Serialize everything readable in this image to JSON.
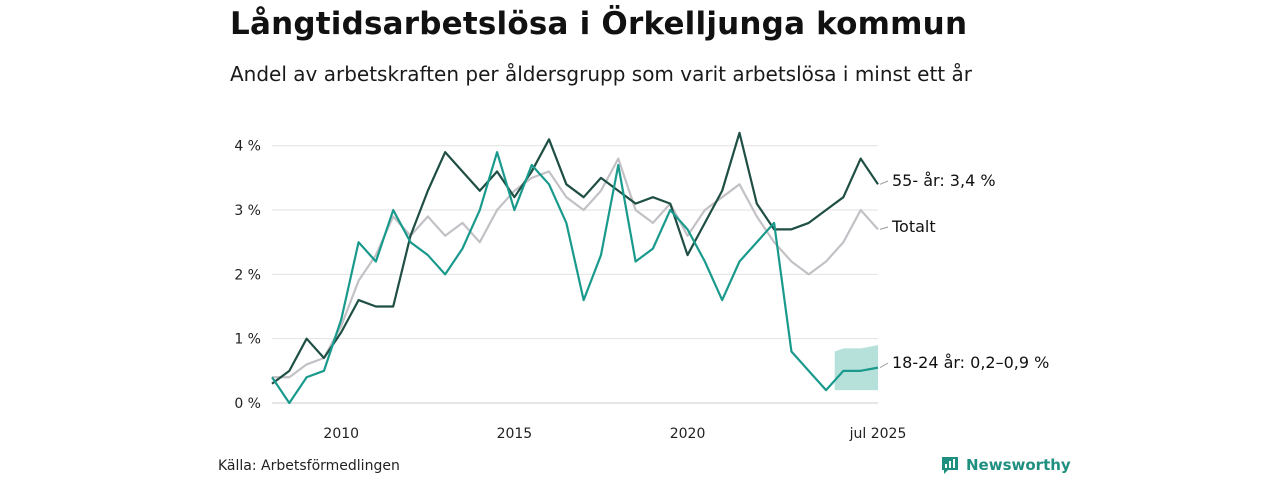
{
  "header": {
    "title": "Långtidsarbetslösa i Örkelljunga kommun",
    "subtitle": "Andel av arbetskraften per åldersgrupp som varit arbetslösa i minst ett år"
  },
  "footer": {
    "source": "Källa: Arbetsförmedlingen",
    "brand": "Newsworthy",
    "brand_color": "#1f8f80"
  },
  "chart_data": {
    "type": "line",
    "x_range": [
      "2008-01",
      "2025-07"
    ],
    "ylim": [
      0,
      4.4
    ],
    "y_ticks": [
      {
        "value": 0,
        "label": "0 %"
      },
      {
        "value": 1,
        "label": "1 %"
      },
      {
        "value": 2,
        "label": "2 %"
      },
      {
        "value": 3,
        "label": "3 %"
      },
      {
        "value": 4,
        "label": "4 %"
      }
    ],
    "x_ticks": [
      {
        "value": "2010-01",
        "label": "2010"
      },
      {
        "value": "2015-01",
        "label": "2015"
      },
      {
        "value": "2020-01",
        "label": "2020"
      },
      {
        "value": "2025-07",
        "label": "jul 2025"
      }
    ],
    "grid": true,
    "series": [
      {
        "id": "totalt",
        "end_label": "Totalt",
        "color": "#c3c1c6",
        "points": [
          [
            "2008-01",
            0.4
          ],
          [
            "2008-07",
            0.4
          ],
          [
            "2009-01",
            0.6
          ],
          [
            "2009-07",
            0.7
          ],
          [
            "2010-01",
            1.2
          ],
          [
            "2010-07",
            1.9
          ],
          [
            "2011-01",
            2.3
          ],
          [
            "2011-07",
            2.9
          ],
          [
            "2012-01",
            2.6
          ],
          [
            "2012-07",
            2.9
          ],
          [
            "2013-01",
            2.6
          ],
          [
            "2013-07",
            2.8
          ],
          [
            "2014-01",
            2.5
          ],
          [
            "2014-07",
            3.0
          ],
          [
            "2015-01",
            3.3
          ],
          [
            "2015-07",
            3.5
          ],
          [
            "2016-01",
            3.6
          ],
          [
            "2016-07",
            3.2
          ],
          [
            "2017-01",
            3.0
          ],
          [
            "2017-07",
            3.3
          ],
          [
            "2018-01",
            3.8
          ],
          [
            "2018-07",
            3.0
          ],
          [
            "2019-01",
            2.8
          ],
          [
            "2019-07",
            3.1
          ],
          [
            "2020-01",
            2.6
          ],
          [
            "2020-07",
            3.0
          ],
          [
            "2021-01",
            3.2
          ],
          [
            "2021-07",
            3.4
          ],
          [
            "2022-01",
            2.9
          ],
          [
            "2022-07",
            2.5
          ],
          [
            "2023-01",
            2.2
          ],
          [
            "2023-07",
            2.0
          ],
          [
            "2024-01",
            2.2
          ],
          [
            "2024-07",
            2.5
          ],
          [
            "2025-01",
            3.0
          ],
          [
            "2025-07",
            2.7
          ]
        ]
      },
      {
        "id": "55plus",
        "end_label": "55- år: 3,4 %",
        "color": "#1f4f44",
        "points": [
          [
            "2008-01",
            0.3
          ],
          [
            "2008-07",
            0.5
          ],
          [
            "2009-01",
            1.0
          ],
          [
            "2009-07",
            0.7
          ],
          [
            "2010-01",
            1.1
          ],
          [
            "2010-07",
            1.6
          ],
          [
            "2011-01",
            1.5
          ],
          [
            "2011-07",
            1.5
          ],
          [
            "2012-01",
            2.6
          ],
          [
            "2012-07",
            3.3
          ],
          [
            "2013-01",
            3.9
          ],
          [
            "2013-07",
            3.6
          ],
          [
            "2014-01",
            3.3
          ],
          [
            "2014-07",
            3.6
          ],
          [
            "2015-01",
            3.2
          ],
          [
            "2015-07",
            3.6
          ],
          [
            "2016-01",
            4.1
          ],
          [
            "2016-07",
            3.4
          ],
          [
            "2017-01",
            3.2
          ],
          [
            "2017-07",
            3.5
          ],
          [
            "2018-01",
            3.3
          ],
          [
            "2018-07",
            3.1
          ],
          [
            "2019-01",
            3.2
          ],
          [
            "2019-07",
            3.1
          ],
          [
            "2020-01",
            2.3
          ],
          [
            "2020-07",
            2.8
          ],
          [
            "2021-01",
            3.3
          ],
          [
            "2021-07",
            4.2
          ],
          [
            "2022-01",
            3.1
          ],
          [
            "2022-07",
            2.7
          ],
          [
            "2023-01",
            2.7
          ],
          [
            "2023-07",
            2.8
          ],
          [
            "2024-01",
            3.0
          ],
          [
            "2024-07",
            3.2
          ],
          [
            "2025-01",
            3.8
          ],
          [
            "2025-07",
            3.4
          ]
        ]
      },
      {
        "id": "18-24",
        "end_label": "18-24 år: 0,2–0,9 %",
        "color": "#1a9a8c",
        "points": [
          [
            "2008-01",
            0.4
          ],
          [
            "2008-07",
            0.0
          ],
          [
            "2009-01",
            0.4
          ],
          [
            "2009-07",
            0.5
          ],
          [
            "2010-01",
            1.3
          ],
          [
            "2010-07",
            2.5
          ],
          [
            "2011-01",
            2.2
          ],
          [
            "2011-07",
            3.0
          ],
          [
            "2012-01",
            2.5
          ],
          [
            "2012-07",
            2.3
          ],
          [
            "2013-01",
            2.0
          ],
          [
            "2013-07",
            2.4
          ],
          [
            "2014-01",
            3.0
          ],
          [
            "2014-07",
            3.9
          ],
          [
            "2015-01",
            3.0
          ],
          [
            "2015-07",
            3.7
          ],
          [
            "2016-01",
            3.4
          ],
          [
            "2016-07",
            2.8
          ],
          [
            "2017-01",
            1.6
          ],
          [
            "2017-07",
            2.3
          ],
          [
            "2018-01",
            3.7
          ],
          [
            "2018-07",
            2.2
          ],
          [
            "2019-01",
            2.4
          ],
          [
            "2019-07",
            3.0
          ],
          [
            "2020-01",
            2.7
          ],
          [
            "2020-07",
            2.2
          ],
          [
            "2021-01",
            1.6
          ],
          [
            "2021-07",
            2.2
          ],
          [
            "2022-01",
            2.5
          ],
          [
            "2022-07",
            2.8
          ],
          [
            "2023-01",
            0.8
          ],
          [
            "2023-07",
            0.5
          ],
          [
            "2024-01",
            0.2
          ],
          [
            "2024-07",
            0.5
          ],
          [
            "2025-01",
            0.5
          ],
          [
            "2025-07",
            0.55
          ]
        ]
      }
    ],
    "uncertainty_band": {
      "series": "18-24",
      "color": "#a9dcd5",
      "points": [
        [
          "2024-04",
          0.2,
          0.8
        ],
        [
          "2024-07",
          0.2,
          0.85
        ],
        [
          "2025-01",
          0.2,
          0.85
        ],
        [
          "2025-07",
          0.2,
          0.9
        ]
      ]
    }
  }
}
